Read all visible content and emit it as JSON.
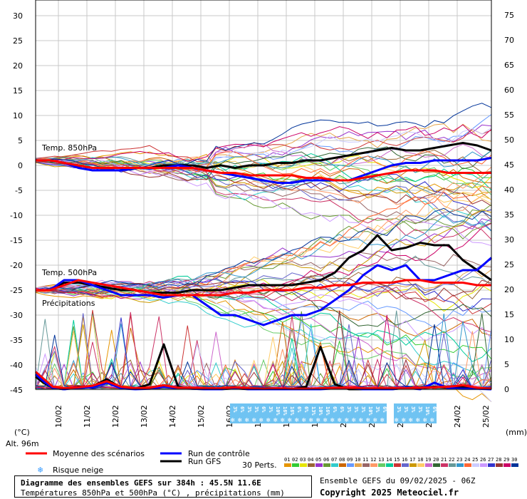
{
  "chart_data": {
    "type": "line",
    "title": "Diagramme des ensembles GEFS sur 384h : 45.5N 11.6E",
    "subtitle": "Températures 850hPa et 500hPa (°C) , précipitations (mm)",
    "left_axis": {
      "unit": "(°C)",
      "ylim": [
        -45,
        30
      ],
      "ticks": [
        30,
        25,
        20,
        15,
        10,
        5,
        0,
        -5,
        -10,
        -15,
        -20,
        -25,
        -30,
        -35,
        -40,
        -45
      ]
    },
    "right_axis": {
      "unit": "(mm)",
      "ylim": [
        0,
        75
      ],
      "ticks": [
        75,
        70,
        65,
        60,
        55,
        50,
        45,
        40,
        35,
        30,
        25,
        20,
        15,
        10,
        5,
        0
      ]
    },
    "x_ticks": [
      "10/02",
      "11/02",
      "12/02",
      "13/02",
      "14/02",
      "15/02",
      "16/02",
      "17/02",
      "18/02",
      "19/02",
      "20/02",
      "21/02",
      "22/02",
      "23/02",
      "24/02",
      "25/02"
    ],
    "altitude": "Alt. 96m",
    "panel_labels": [
      "Temp. 850hPa",
      "Temp. 500hPa",
      "Précipitations"
    ],
    "legend": {
      "mean": "Moyenne des scénarios",
      "control": "Run de contrôle",
      "gfs": "Run GFS",
      "snow": "Risque neige",
      "perts": "30 Perts.",
      "perturbation_ids": [
        "01",
        "02",
        "03",
        "04",
        "05",
        "06",
        "07",
        "08",
        "09",
        "10",
        "11",
        "12",
        "13",
        "14",
        "15",
        "16",
        "17",
        "18",
        "19",
        "20",
        "21",
        "22",
        "23",
        "24",
        "25",
        "26",
        "27",
        "28",
        "29",
        "30"
      ],
      "perturbation_colors": [
        "#e69500",
        "#33cc33",
        "#e6e600",
        "#996633",
        "#9933cc",
        "#669933",
        "#33cccc",
        "#cc6600",
        "#6699ff",
        "#e6a64d",
        "#996666",
        "#ff9966",
        "#66cc66",
        "#00cc99",
        "#cc3333",
        "#6666cc",
        "#cc9900",
        "#ffcc66",
        "#cc66cc",
        "#336633",
        "#cc3366",
        "#669999",
        "#3399cc",
        "#ff6633",
        "#ccccff",
        "#cc99ff",
        "#3333cc",
        "#993333",
        "#cc0066",
        "#003399"
      ]
    },
    "snow_risk_labels": [
      "3%",
      "6%",
      "3%",
      "3%",
      "6%",
      "3%",
      "10%",
      "16%",
      "16%",
      "6%",
      "6%",
      "13%",
      "10%",
      "16%",
      "6%",
      "6%",
      "3%",
      "3%",
      "3%",
      "10%",
      "3%",
      "6%",
      "3%",
      "3%",
      "3%",
      "3%",
      "10%",
      "6%"
    ],
    "series": [
      {
        "name": "Moyenne des scénarios",
        "panel": "850",
        "color": "#ff0000",
        "x": [
          0,
          0.5,
          1,
          1.5,
          2,
          2.5,
          3,
          3.5,
          4,
          4.5,
          5,
          5.5,
          6,
          6.5,
          7,
          7.5,
          8,
          8.5,
          9,
          9.5,
          10,
          10.5,
          11,
          11.5,
          12,
          12.5,
          13,
          13.5,
          14,
          14.5,
          15,
          15.5,
          16
        ],
        "y": [
          1,
          1,
          0.5,
          0,
          -0.5,
          -0.5,
          -0.5,
          -0.5,
          -0.5,
          -0.5,
          -0.5,
          -0.5,
          -1,
          -1.5,
          -1.5,
          -2,
          -2,
          -2,
          -2,
          -2.5,
          -2.5,
          -3,
          -3,
          -2.5,
          -2,
          -1.5,
          -1,
          -1,
          -1,
          -1.5,
          -1.5,
          -1.5,
          -1.5
        ]
      },
      {
        "name": "Run de contrôle",
        "panel": "850",
        "color": "#0000ff",
        "x": [
          0,
          0.5,
          1,
          1.5,
          2,
          2.5,
          3,
          3.5,
          4,
          4.5,
          5,
          5.5,
          6,
          6.5,
          7,
          7.5,
          8,
          8.5,
          9,
          9.5,
          10,
          10.5,
          11,
          11.5,
          12,
          12.5,
          13,
          13.5,
          14,
          14.5,
          15,
          15.5,
          16
        ],
        "y": [
          1,
          1,
          0.5,
          -0.5,
          -1,
          -1,
          -1,
          -0.5,
          -0.5,
          -0.5,
          0,
          -0.5,
          -1,
          -1.5,
          -2,
          -2.5,
          -3,
          -3.5,
          -3.5,
          -3,
          -3,
          -3,
          -3,
          -2,
          -1,
          0,
          0.5,
          0.5,
          1,
          1,
          1,
          1,
          1.5
        ]
      },
      {
        "name": "Run GFS",
        "panel": "850",
        "color": "#000000",
        "x": [
          0,
          0.5,
          1,
          1.5,
          2,
          2.5,
          3,
          3.5,
          4,
          4.5,
          5,
          5.5,
          6,
          6.5,
          7,
          7.5,
          8,
          8.5,
          9,
          9.5,
          10,
          10.5,
          11,
          11.5,
          12,
          12.5,
          13,
          13.5,
          14,
          14.5,
          15,
          15.5,
          16
        ],
        "y": [
          1,
          1,
          0.5,
          0,
          -0.5,
          -0.5,
          -0.5,
          -0.5,
          -0.5,
          0,
          0,
          0,
          -0.5,
          0,
          -0.5,
          0,
          0,
          0.5,
          0.5,
          1,
          1,
          1.5,
          2,
          2.5,
          3,
          3.5,
          3,
          3,
          3.5,
          4,
          4.5,
          4,
          3
        ]
      },
      {
        "name": "Moyenne des scénarios",
        "panel": "500",
        "color": "#ff0000",
        "x": [
          0,
          0.5,
          1,
          1.5,
          2,
          2.5,
          3,
          3.5,
          4,
          4.5,
          5,
          5.5,
          6,
          6.5,
          7,
          7.5,
          8,
          8.5,
          9,
          9.5,
          10,
          10.5,
          11,
          11.5,
          12,
          12.5,
          13,
          13.5,
          14,
          14.5,
          15,
          15.5,
          16
        ],
        "y": [
          -25,
          -25,
          -24,
          -23,
          -23.5,
          -24,
          -24.5,
          -25,
          -25.5,
          -26,
          -26,
          -26,
          -26,
          -26,
          -25.5,
          -25.5,
          -25,
          -25,
          -25,
          -24.5,
          -24.5,
          -24,
          -24,
          -23.5,
          -23.5,
          -23.5,
          -23,
          -23,
          -23.5,
          -23.5,
          -23.5,
          -24,
          -24
        ]
      },
      {
        "name": "Run de contrôle",
        "panel": "500",
        "color": "#0000ff",
        "x": [
          0,
          0.5,
          1,
          1.5,
          2,
          2.5,
          3,
          3.5,
          4,
          4.5,
          5,
          5.5,
          6,
          6.5,
          7,
          7.5,
          8,
          8.5,
          9,
          9.5,
          10,
          10.5,
          11,
          11.5,
          12,
          12.5,
          13,
          13.5,
          14,
          14.5,
          15,
          15.5,
          16
        ],
        "y": [
          -25,
          -25,
          -23,
          -23,
          -24,
          -25,
          -26,
          -26,
          -26,
          -26.5,
          -26,
          -26,
          -28,
          -30,
          -30,
          -31,
          -32,
          -31,
          -30,
          -30,
          -29,
          -27,
          -25,
          -22,
          -20,
          -21,
          -20,
          -23,
          -23,
          -22,
          -21,
          -21,
          -18.5
        ]
      },
      {
        "name": "Run GFS",
        "panel": "500",
        "color": "#000000",
        "x": [
          0,
          0.5,
          1,
          1.5,
          2,
          2.5,
          3,
          3.5,
          4,
          4.5,
          5,
          5.5,
          6,
          6.5,
          7,
          7.5,
          8,
          8.5,
          9,
          9.5,
          10,
          10.5,
          11,
          11.5,
          12,
          12.5,
          13,
          13.5,
          14,
          14.5,
          15,
          15.5,
          16
        ],
        "y": [
          -25,
          -25,
          -23.5,
          -23.5,
          -24,
          -24.5,
          -25,
          -25,
          -25.5,
          -25.5,
          -25.5,
          -25,
          -25,
          -25,
          -24.5,
          -24,
          -24,
          -24,
          -24,
          -23.5,
          -23,
          -21.5,
          -18.5,
          -17,
          -14,
          -17,
          -16.5,
          -15.5,
          -16,
          -16,
          -19,
          -21,
          -23
        ]
      },
      {
        "name": "Moyenne des scénarios",
        "panel": "precip",
        "color": "#ff0000",
        "x": [
          0,
          0.3,
          0.6,
          1,
          1.5,
          2,
          2.5,
          3,
          3.5,
          4,
          4.5,
          5,
          5.5,
          6,
          6.5,
          7,
          7.5,
          8,
          8.5,
          9,
          9.5,
          10,
          10.5,
          11,
          11.5,
          12,
          12.5,
          13,
          13.5,
          14,
          14.5,
          15,
          15.5,
          16
        ],
        "y": [
          3.5,
          2,
          0.5,
          0.2,
          0.4,
          0.7,
          1.6,
          0.5,
          0.2,
          0.3,
          0.8,
          0.3,
          0.3,
          0.2,
          0.2,
          0.4,
          0.2,
          0.1,
          0.2,
          0.1,
          0.1,
          0.2,
          0.3,
          0.3,
          0.2,
          0.2,
          0.2,
          0.2,
          0.3,
          0.4,
          0.5,
          0.8,
          0.3,
          0.1
        ]
      },
      {
        "name": "Run de contrôle",
        "panel": "precip",
        "color": "#0000ff",
        "x": [
          0,
          0.3,
          0.6,
          1,
          1.5,
          2,
          2.5,
          3,
          3.5,
          4,
          4.5,
          5,
          5.5,
          6,
          6.5,
          7,
          7.5,
          8,
          8.5,
          9,
          9.5,
          10,
          10.5,
          11,
          11.5,
          12,
          12.5,
          13,
          13.5,
          14,
          14.5,
          15,
          15.5,
          16
        ],
        "y": [
          3,
          1.5,
          0.3,
          0,
          0.3,
          0.4,
          1.3,
          0.2,
          0,
          0.1,
          0.5,
          0.2,
          0.1,
          0,
          0,
          0.3,
          0,
          0,
          0,
          0,
          0,
          0,
          0.2,
          0.2,
          0,
          0,
          0,
          0.3,
          0,
          1.3,
          0.2,
          0.1,
          0.1,
          0
        ]
      },
      {
        "name": "Run GFS",
        "panel": "precip",
        "color": "#000000",
        "x": [
          0,
          0.3,
          0.6,
          1,
          1.5,
          2,
          2.5,
          3,
          3.5,
          4,
          4.5,
          5,
          5.5,
          6,
          6.5,
          7,
          7.5,
          8,
          8.5,
          9,
          9.5,
          10,
          10.5,
          11,
          11.5,
          12,
          12.5,
          13,
          13.5,
          14,
          14.5,
          15,
          15.5,
          16
        ],
        "y": [
          2.5,
          1.2,
          0.3,
          0,
          0.5,
          0.6,
          2,
          0.3,
          0.1,
          1,
          9,
          0.5,
          0.1,
          0,
          0,
          0.2,
          0,
          0,
          0,
          0,
          0.5,
          8.5,
          1,
          0,
          0,
          0,
          0,
          0.3,
          0.2,
          0.5,
          0.3,
          0.4,
          0.2,
          0
        ]
      }
    ]
  }
}
